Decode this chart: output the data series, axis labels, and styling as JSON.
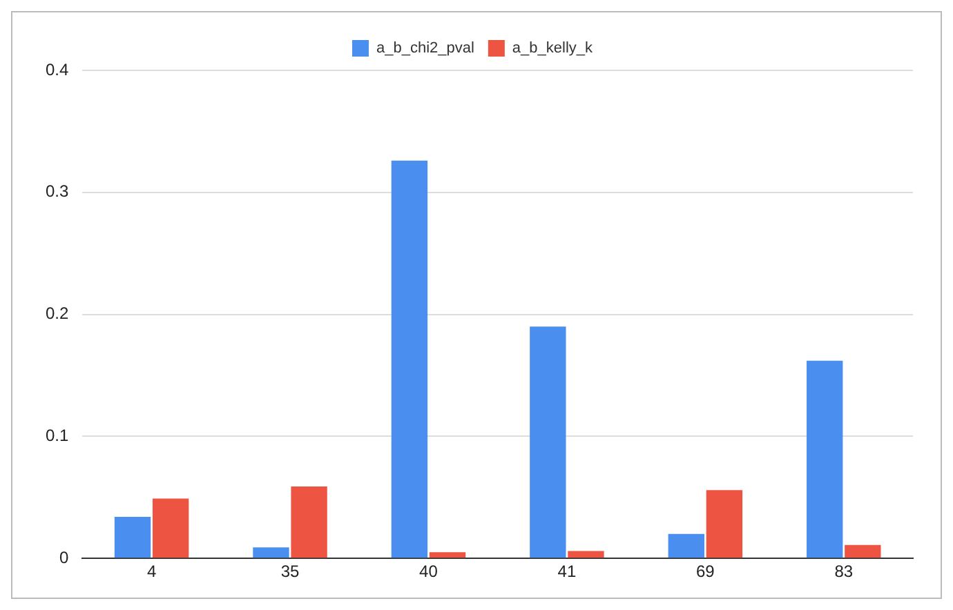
{
  "chart_data": {
    "type": "bar",
    "categories": [
      "4",
      "35",
      "40",
      "41",
      "69",
      "83"
    ],
    "series": [
      {
        "name": "a_b_chi2_pval",
        "color": "#4a8ff0",
        "values": [
          0.034,
          0.009,
          0.326,
          0.19,
          0.02,
          0.162
        ]
      },
      {
        "name": "a_b_kelly_k",
        "color": "#ee5442",
        "values": [
          0.049,
          0.059,
          0.005,
          0.006,
          0.056,
          0.011
        ]
      }
    ],
    "ylim": [
      0,
      0.4
    ],
    "yticks": [
      0,
      0.1,
      0.2,
      0.3,
      0.4
    ],
    "grid": "y",
    "legend": "top"
  }
}
